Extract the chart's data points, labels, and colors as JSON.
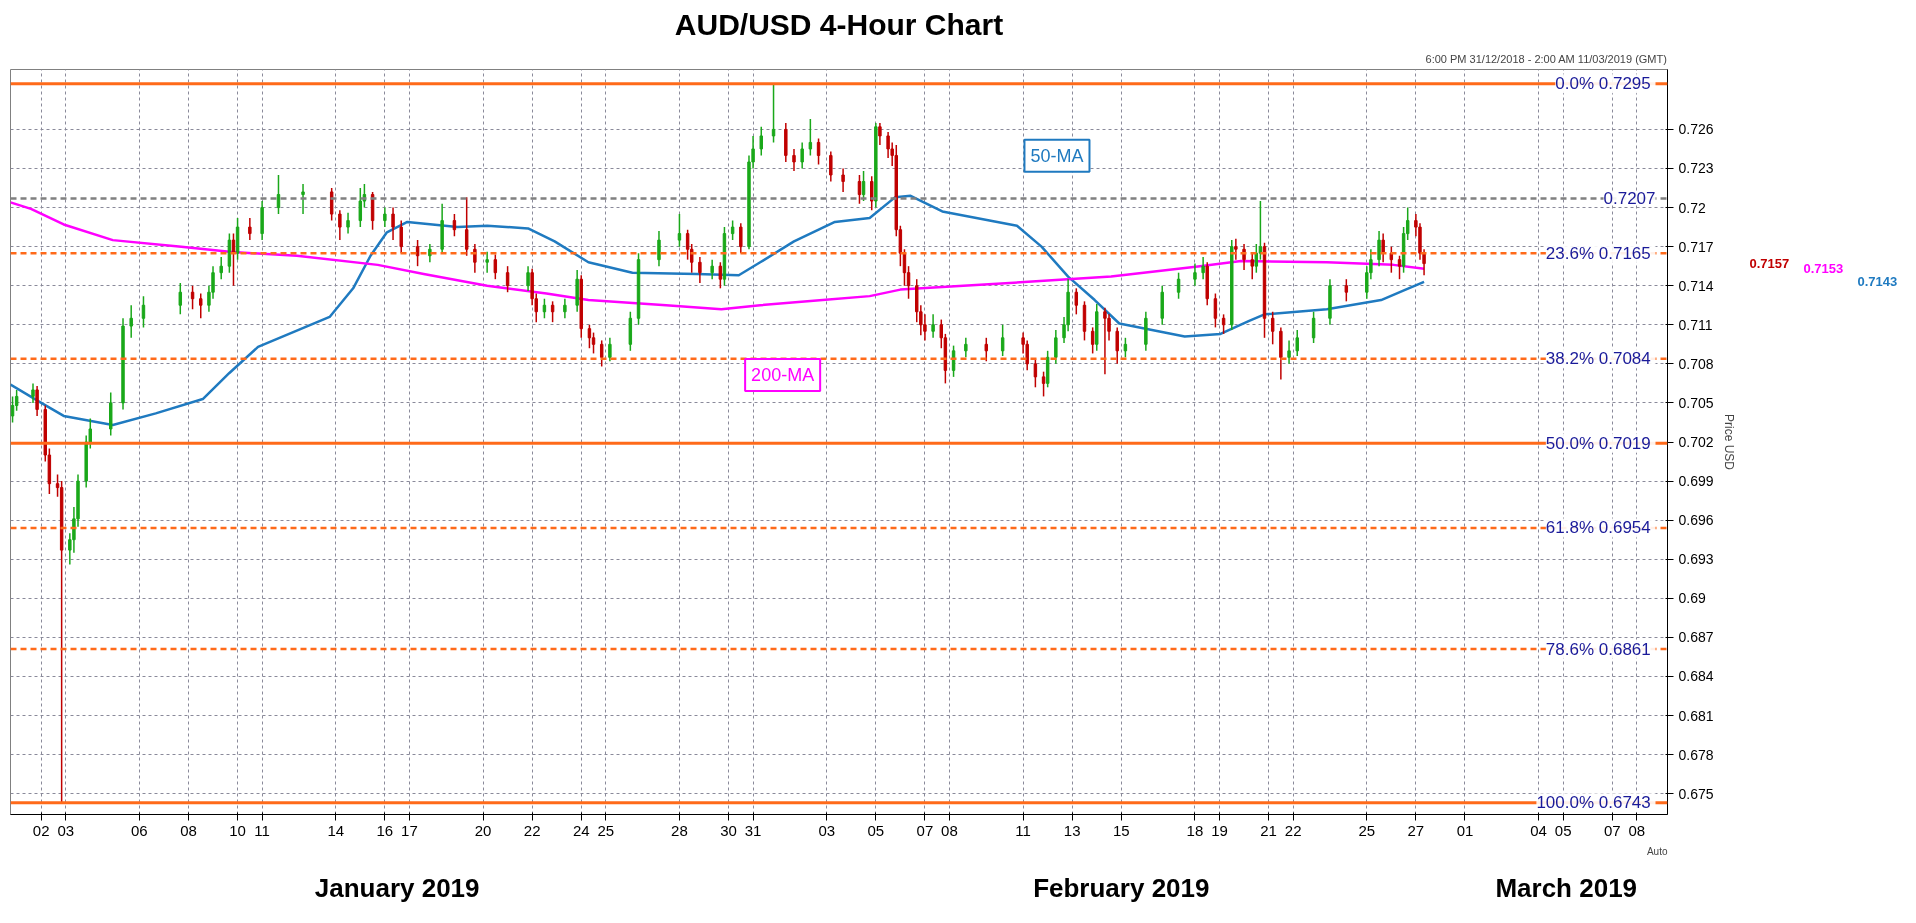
{
  "chart_data": {
    "type": "candlestick",
    "title": "AUD/USD 4-Hour Chart",
    "subtitle": "6:00 PM 31/12/2018 - 2:00 AM 11/03/2019 (GMT)",
    "ylabel": "Price USD",
    "xlim": [
      "2018-12-31T18:00",
      "2019-03-09T06:00"
    ],
    "ylim": [
      0.6734,
      0.7306
    ],
    "xticks": [
      {
        "value": "2019-01-02",
        "label": "02"
      },
      {
        "value": "2019-01-03",
        "label": "03"
      },
      {
        "value": "2019-01-06",
        "label": "06"
      },
      {
        "value": "2019-01-08",
        "label": "08"
      },
      {
        "value": "2019-01-10",
        "label": "10"
      },
      {
        "value": "2019-01-11",
        "label": "11"
      },
      {
        "value": "2019-01-14",
        "label": "14"
      },
      {
        "value": "2019-01-16",
        "label": "16"
      },
      {
        "value": "2019-01-17",
        "label": "17"
      },
      {
        "value": "2019-01-20",
        "label": "20"
      },
      {
        "value": "2019-01-22",
        "label": "22"
      },
      {
        "value": "2019-01-24",
        "label": "24"
      },
      {
        "value": "2019-01-25",
        "label": "25"
      },
      {
        "value": "2019-01-28",
        "label": "28"
      },
      {
        "value": "2019-01-30",
        "label": "30"
      },
      {
        "value": "2019-01-31",
        "label": "31"
      },
      {
        "value": "2019-02-03",
        "label": "03"
      },
      {
        "value": "2019-02-05",
        "label": "05"
      },
      {
        "value": "2019-02-07",
        "label": "07"
      },
      {
        "value": "2019-02-08",
        "label": "08"
      },
      {
        "value": "2019-02-11",
        "label": "11"
      },
      {
        "value": "2019-02-13",
        "label": "13"
      },
      {
        "value": "2019-02-15",
        "label": "15"
      },
      {
        "value": "2019-02-18",
        "label": "18"
      },
      {
        "value": "2019-02-19",
        "label": "19"
      },
      {
        "value": "2019-02-21",
        "label": "21"
      },
      {
        "value": "2019-02-22",
        "label": "22"
      },
      {
        "value": "2019-02-25",
        "label": "25"
      },
      {
        "value": "2019-02-27",
        "label": "27"
      },
      {
        "value": "2019-03-01",
        "label": "01"
      },
      {
        "value": "2019-03-04",
        "label": "04"
      },
      {
        "value": "2019-03-05",
        "label": "05"
      },
      {
        "value": "2019-03-07",
        "label": "07"
      },
      {
        "value": "2019-03-08",
        "label": "08"
      }
    ],
    "yticks": [
      0.675,
      0.678,
      0.681,
      0.684,
      0.687,
      0.69,
      0.693,
      0.696,
      0.699,
      0.702,
      0.705,
      0.708,
      0.711,
      0.714,
      0.717,
      0.72,
      0.723,
      0.726
    ],
    "grid": true,
    "legend": false,
    "x": [
      "2018-12-31T20:00",
      "2019-01-01T00:00",
      "2019-01-01T16:00",
      "2019-01-01T20:00",
      "2019-01-02T04:00",
      "2019-01-02T08:00",
      "2019-01-02T16:00",
      "2019-01-02T20:00",
      "2019-01-03T04:00",
      "2019-01-03T08:00",
      "2019-01-03T12:00",
      "2019-01-03T20:00",
      "2019-01-04T00:00",
      "2019-01-04T20:00",
      "2019-01-05T08:00",
      "2019-01-05T16:00",
      "2019-01-06T04:00",
      "2019-01-07T16:00",
      "2019-01-08T04:00",
      "2019-01-08T12:00",
      "2019-01-08T20:00",
      "2019-01-09T00:00",
      "2019-01-09T08:00",
      "2019-01-09T16:00",
      "2019-01-09T20:00",
      "2019-01-10T00:00",
      "2019-01-10T12:00",
      "2019-01-11T00:00",
      "2019-01-11T16:00",
      "2019-01-12T16:00",
      "2019-01-13T20:00",
      "2019-01-14T04:00",
      "2019-01-14T12:00",
      "2019-01-15T00:00",
      "2019-01-15T04:00",
      "2019-01-15T12:00",
      "2019-01-16T00:00",
      "2019-01-16T08:00",
      "2019-01-16T16:00",
      "2019-01-17T08:00",
      "2019-01-17T20:00",
      "2019-01-18T08:00",
      "2019-01-18T20:00",
      "2019-01-19T08:00",
      "2019-01-19T16:00",
      "2019-01-20T04:00",
      "2019-01-20T12:00",
      "2019-01-21T00:00",
      "2019-01-21T20:00",
      "2019-01-22T00:00",
      "2019-01-22T04:00",
      "2019-01-22T12:00",
      "2019-01-22T20:00",
      "2019-01-23T08:00",
      "2019-01-23T20:00",
      "2019-01-24T00:00",
      "2019-01-24T08:00",
      "2019-01-24T12:00",
      "2019-01-24T20:00",
      "2019-01-25T04:00",
      "2019-01-26T00:00",
      "2019-01-26T08:00",
      "2019-01-27T04:00",
      "2019-01-28T00:00",
      "2019-01-28T08:00",
      "2019-01-28T12:00",
      "2019-01-28T20:00",
      "2019-01-29T08:00",
      "2019-01-29T16:00",
      "2019-01-29T20:00",
      "2019-01-30T04:00",
      "2019-01-30T12:00",
      "2019-01-30T20:00",
      "2019-01-31T00:00",
      "2019-01-31T08:00",
      "2019-01-31T20:00",
      "2019-02-01T08:00",
      "2019-02-01T16:00",
      "2019-02-02T00:00",
      "2019-02-02T08:00",
      "2019-02-02T16:00",
      "2019-02-03T04:00",
      "2019-02-03T16:00",
      "2019-02-04T08:00",
      "2019-02-04T12:00",
      "2019-02-04T20:00",
      "2019-02-05T00:00",
      "2019-02-05T04:00",
      "2019-02-05T12:00",
      "2019-02-05T16:00",
      "2019-02-05T20:00",
      "2019-02-06T00:00",
      "2019-02-06T04:00",
      "2019-02-06T08:00",
      "2019-02-06T16:00",
      "2019-02-06T20:00",
      "2019-02-07T00:00",
      "2019-02-07T08:00",
      "2019-02-07T16:00",
      "2019-02-07T20:00",
      "2019-02-08T04:00",
      "2019-02-08T16:00",
      "2019-02-09T12:00",
      "2019-02-10T04:00",
      "2019-02-11T00:00",
      "2019-02-11T04:00",
      "2019-02-11T12:00",
      "2019-02-11T20:00",
      "2019-02-12T00:00",
      "2019-02-12T08:00",
      "2019-02-12T16:00",
      "2019-02-12T20:00",
      "2019-02-13T04:00",
      "2019-02-13T12:00",
      "2019-02-13T20:00",
      "2019-02-14T00:00",
      "2019-02-14T08:00",
      "2019-02-14T12:00",
      "2019-02-14T20:00",
      "2019-02-15T04:00",
      "2019-02-16T00:00",
      "2019-02-16T16:00",
      "2019-02-17T08:00",
      "2019-02-18T00:00",
      "2019-02-18T08:00",
      "2019-02-18T12:00",
      "2019-02-18T20:00",
      "2019-02-19T04:00",
      "2019-02-19T12:00",
      "2019-02-19T16:00",
      "2019-02-20T00:00",
      "2019-02-20T08:00",
      "2019-02-20T12:00",
      "2019-02-20T16:00",
      "2019-02-20T20:00",
      "2019-02-21T04:00",
      "2019-02-21T12:00",
      "2019-02-21T20:00",
      "2019-02-22T04:00",
      "2019-02-22T20:00",
      "2019-02-23T12:00",
      "2019-02-24T04:00",
      "2019-02-25T00:00",
      "2019-02-25T04:00",
      "2019-02-25T12:00",
      "2019-02-25T16:00",
      "2019-02-26T00:00",
      "2019-02-26T08:00",
      "2019-02-26T12:00",
      "2019-02-26T16:00",
      "2019-02-27T00:00",
      "2019-02-27T04:00",
      "2019-02-27T08:00"
    ],
    "ohlc": [
      [
        0.704,
        0.7055,
        0.7035,
        0.7048
      ],
      [
        0.7048,
        0.706,
        0.7044,
        0.7055
      ],
      [
        0.7055,
        0.7065,
        0.705,
        0.706
      ],
      [
        0.706,
        0.7063,
        0.704,
        0.7045
      ],
      [
        0.7045,
        0.7048,
        0.7005,
        0.701
      ],
      [
        0.701,
        0.7015,
        0.698,
        0.6988
      ],
      [
        0.6988,
        0.6995,
        0.6978,
        0.6985
      ],
      [
        0.6985,
        0.699,
        0.6743,
        0.6937
      ],
      [
        0.6937,
        0.695,
        0.6926,
        0.6945
      ],
      [
        0.6945,
        0.697,
        0.6935,
        0.6961
      ],
      [
        0.6961,
        0.6995,
        0.6955,
        0.699
      ],
      [
        0.699,
        0.7025,
        0.6985,
        0.702
      ],
      [
        0.702,
        0.7038,
        0.7015,
        0.703
      ],
      [
        0.703,
        0.7058,
        0.7025,
        0.705
      ],
      [
        0.705,
        0.7115,
        0.7045,
        0.7109
      ],
      [
        0.7109,
        0.7125,
        0.71,
        0.7115
      ],
      [
        0.7115,
        0.7132,
        0.7108,
        0.7125
      ],
      [
        0.7125,
        0.7142,
        0.7118,
        0.7135
      ],
      [
        0.7135,
        0.714,
        0.7122,
        0.713
      ],
      [
        0.713,
        0.7134,
        0.7115,
        0.7125
      ],
      [
        0.7125,
        0.714,
        0.712,
        0.7135
      ],
      [
        0.7135,
        0.7155,
        0.713,
        0.715
      ],
      [
        0.715,
        0.7162,
        0.7145,
        0.7155
      ],
      [
        0.7155,
        0.718,
        0.715,
        0.7175
      ],
      [
        0.7175,
        0.718,
        0.714,
        0.7165
      ],
      [
        0.7165,
        0.7192,
        0.716,
        0.7185
      ],
      [
        0.7185,
        0.7192,
        0.7175,
        0.718
      ],
      [
        0.718,
        0.7205,
        0.7175,
        0.72
      ],
      [
        0.72,
        0.7225,
        0.7195,
        0.721
      ],
      [
        0.721,
        0.7218,
        0.7195,
        0.7212
      ],
      [
        0.7212,
        0.7215,
        0.719,
        0.7195
      ],
      [
        0.7195,
        0.7198,
        0.7175,
        0.7185
      ],
      [
        0.7185,
        0.7196,
        0.718,
        0.719
      ],
      [
        0.719,
        0.7215,
        0.7185,
        0.7205
      ],
      [
        0.7205,
        0.7218,
        0.72,
        0.721
      ],
      [
        0.721,
        0.7212,
        0.7183,
        0.719
      ],
      [
        0.719,
        0.72,
        0.7185,
        0.7195
      ],
      [
        0.7195,
        0.72,
        0.7175,
        0.7185
      ],
      [
        0.7185,
        0.719,
        0.7165,
        0.717
      ],
      [
        0.717,
        0.7175,
        0.7155,
        0.7163
      ],
      [
        0.7163,
        0.7172,
        0.7158,
        0.7168
      ],
      [
        0.7168,
        0.7203,
        0.7165,
        0.719
      ],
      [
        0.719,
        0.7195,
        0.7178,
        0.7183
      ],
      [
        0.7183,
        0.7208,
        0.7163,
        0.7168
      ],
      [
        0.7168,
        0.7172,
        0.715,
        0.7158
      ],
      [
        0.7158,
        0.7166,
        0.715,
        0.716
      ],
      [
        0.716,
        0.7164,
        0.7145,
        0.715
      ],
      [
        0.715,
        0.7155,
        0.7135,
        0.714
      ],
      [
        0.714,
        0.7155,
        0.7136,
        0.715
      ],
      [
        0.715,
        0.7153,
        0.7125,
        0.713
      ],
      [
        0.713,
        0.7134,
        0.7112,
        0.712
      ],
      [
        0.712,
        0.713,
        0.7115,
        0.7125
      ],
      [
        0.7125,
        0.7128,
        0.7112,
        0.712
      ],
      [
        0.712,
        0.713,
        0.7115,
        0.7125
      ],
      [
        0.7125,
        0.7152,
        0.712,
        0.7145
      ],
      [
        0.7145,
        0.7148,
        0.71,
        0.7107
      ],
      [
        0.7107,
        0.711,
        0.7092,
        0.71
      ],
      [
        0.71,
        0.7104,
        0.7088,
        0.7095
      ],
      [
        0.7095,
        0.7098,
        0.7078,
        0.7085
      ],
      [
        0.7085,
        0.71,
        0.7082,
        0.7095
      ],
      [
        0.7095,
        0.712,
        0.709,
        0.7115
      ],
      [
        0.7115,
        0.7165,
        0.711,
        0.716
      ],
      [
        0.716,
        0.7182,
        0.7155,
        0.7175
      ],
      [
        0.7175,
        0.7195,
        0.717,
        0.718
      ],
      [
        0.718,
        0.7183,
        0.716,
        0.7168
      ],
      [
        0.7168,
        0.7172,
        0.715,
        0.7158
      ],
      [
        0.7158,
        0.7162,
        0.7142,
        0.715
      ],
      [
        0.715,
        0.716,
        0.7145,
        0.7155
      ],
      [
        0.7155,
        0.7158,
        0.7138,
        0.7145
      ],
      [
        0.7145,
        0.7185,
        0.714,
        0.718
      ],
      [
        0.718,
        0.719,
        0.7175,
        0.7185
      ],
      [
        0.7185,
        0.7188,
        0.7165,
        0.717
      ],
      [
        0.717,
        0.724,
        0.7168,
        0.7235
      ],
      [
        0.7235,
        0.7255,
        0.723,
        0.7245
      ],
      [
        0.7245,
        0.7262,
        0.724,
        0.7255
      ],
      [
        0.7255,
        0.7295,
        0.725,
        0.726
      ],
      [
        0.726,
        0.7265,
        0.7235,
        0.724
      ],
      [
        0.724,
        0.7245,
        0.7228,
        0.7235
      ],
      [
        0.7235,
        0.725,
        0.723,
        0.7245
      ],
      [
        0.7245,
        0.7268,
        0.724,
        0.725
      ],
      [
        0.725,
        0.7253,
        0.7233,
        0.724
      ],
      [
        0.724,
        0.7243,
        0.722,
        0.7225
      ],
      [
        0.7225,
        0.723,
        0.7212,
        0.722
      ],
      [
        0.722,
        0.7225,
        0.7203,
        0.721
      ],
      [
        0.721,
        0.7228,
        0.7205,
        0.722
      ],
      [
        0.722,
        0.7224,
        0.7198,
        0.7205
      ],
      [
        0.7205,
        0.7265,
        0.72,
        0.7262
      ],
      [
        0.7262,
        0.7265,
        0.7248,
        0.7255
      ],
      [
        0.7255,
        0.7258,
        0.7238,
        0.7245
      ],
      [
        0.7245,
        0.725,
        0.7232,
        0.724
      ],
      [
        0.724,
        0.7248,
        0.7178,
        0.7183
      ],
      [
        0.7183,
        0.7186,
        0.7155,
        0.7165
      ],
      [
        0.7165,
        0.7168,
        0.714,
        0.715
      ],
      [
        0.715,
        0.7155,
        0.713,
        0.714
      ],
      [
        0.714,
        0.7145,
        0.7112,
        0.712
      ],
      [
        0.712,
        0.7125,
        0.7102,
        0.711
      ],
      [
        0.711,
        0.7118,
        0.7098,
        0.7105
      ],
      [
        0.7105,
        0.7118,
        0.71,
        0.711
      ],
      [
        0.711,
        0.7114,
        0.7092,
        0.71
      ],
      [
        0.71,
        0.7103,
        0.7065,
        0.7075
      ],
      [
        0.7075,
        0.7094,
        0.707,
        0.709
      ],
      [
        0.709,
        0.71,
        0.7085,
        0.7095
      ],
      [
        0.7095,
        0.71,
        0.7082,
        0.709
      ],
      [
        0.709,
        0.711,
        0.7086,
        0.71
      ],
      [
        0.71,
        0.7104,
        0.7088,
        0.7095
      ],
      [
        0.7095,
        0.7098,
        0.7075,
        0.708
      ],
      [
        0.708,
        0.7084,
        0.7062,
        0.707
      ],
      [
        0.707,
        0.7074,
        0.7055,
        0.7065
      ],
      [
        0.7065,
        0.709,
        0.7062,
        0.7085
      ],
      [
        0.7085,
        0.7106,
        0.708,
        0.71
      ],
      [
        0.71,
        0.7116,
        0.7096,
        0.711
      ],
      [
        0.711,
        0.7145,
        0.7105,
        0.7135
      ],
      [
        0.7135,
        0.7138,
        0.7118,
        0.7125
      ],
      [
        0.7125,
        0.7128,
        0.7098,
        0.7105
      ],
      [
        0.7105,
        0.7108,
        0.7088,
        0.7095
      ],
      [
        0.7095,
        0.7126,
        0.709,
        0.712
      ],
      [
        0.712,
        0.7123,
        0.7072,
        0.7115
      ],
      [
        0.7115,
        0.7118,
        0.7098,
        0.7105
      ],
      [
        0.7105,
        0.7108,
        0.708,
        0.709
      ],
      [
        0.709,
        0.71,
        0.7085,
        0.7095
      ],
      [
        0.7095,
        0.712,
        0.709,
        0.7115
      ],
      [
        0.7115,
        0.714,
        0.711,
        0.7135
      ],
      [
        0.7135,
        0.715,
        0.713,
        0.7145
      ],
      [
        0.7145,
        0.7157,
        0.714,
        0.715
      ],
      [
        0.715,
        0.7162,
        0.7145,
        0.7155
      ],
      [
        0.7155,
        0.7158,
        0.7125,
        0.713
      ],
      [
        0.713,
        0.7134,
        0.7108,
        0.7115
      ],
      [
        0.7115,
        0.7118,
        0.7103,
        0.711
      ],
      [
        0.711,
        0.7175,
        0.7106,
        0.717
      ],
      [
        0.717,
        0.7176,
        0.716,
        0.7168
      ],
      [
        0.7168,
        0.7172,
        0.7152,
        0.716
      ],
      [
        0.716,
        0.7165,
        0.7145,
        0.7155
      ],
      [
        0.7155,
        0.7172,
        0.715,
        0.7165
      ],
      [
        0.7165,
        0.7205,
        0.716,
        0.717
      ],
      [
        0.717,
        0.7173,
        0.71,
        0.7115
      ],
      [
        0.7115,
        0.712,
        0.7095,
        0.7105
      ],
      [
        0.7105,
        0.7108,
        0.7068,
        0.7085
      ],
      [
        0.7085,
        0.7098,
        0.708,
        0.709
      ],
      [
        0.709,
        0.7106,
        0.7086,
        0.71
      ],
      [
        0.71,
        0.712,
        0.7096,
        0.7115
      ],
      [
        0.7115,
        0.7145,
        0.711,
        0.714
      ],
      [
        0.714,
        0.7145,
        0.7128,
        0.7135
      ],
      [
        0.7135,
        0.7155,
        0.713,
        0.715
      ],
      [
        0.715,
        0.7168,
        0.7145,
        0.716
      ],
      [
        0.716,
        0.7182,
        0.7155,
        0.7175
      ],
      [
        0.7175,
        0.718,
        0.7158,
        0.7165
      ],
      [
        0.7165,
        0.717,
        0.715,
        0.716
      ],
      [
        0.716,
        0.7163,
        0.7145,
        0.7155
      ],
      [
        0.7155,
        0.7185,
        0.715,
        0.718
      ],
      [
        0.718,
        0.72,
        0.7175,
        0.719
      ],
      [
        0.719,
        0.7195,
        0.7178,
        0.7185
      ],
      [
        0.7185,
        0.7188,
        0.716,
        0.7165
      ],
      [
        0.7165,
        0.7168,
        0.7148,
        0.7157
      ]
    ],
    "series": [
      {
        "name": "50-MA",
        "type": "line",
        "color": "#1f7ac0",
        "x": [
          "2018-12-31T18:00",
          "2019-01-01T22:00",
          "2019-01-02T22:00",
          "2019-01-04T22:00",
          "2019-01-06T16:00",
          "2019-01-08T14:00",
          "2019-01-09T16:00",
          "2019-01-10T20:00",
          "2019-01-13T18:00",
          "2019-01-14T17:00",
          "2019-01-15T10:00",
          "2019-01-16T02:00",
          "2019-01-16T22:00",
          "2019-01-18T23:00",
          "2019-01-20T04:00",
          "2019-01-21T20:00",
          "2019-01-22T22:00",
          "2019-01-24T07:00",
          "2019-01-26T02:00",
          "2019-01-28T17:00",
          "2019-01-30T10:00",
          "2019-01-31T07:00",
          "2019-02-01T16:00",
          "2019-02-03T08:00",
          "2019-02-04T18:00",
          "2019-02-05T19:00",
          "2019-02-06T10:00",
          "2019-02-07T17:00",
          "2019-02-10T18:00",
          "2019-02-11T18:00",
          "2019-02-12T20:00",
          "2019-02-13T22:00",
          "2019-02-14T22:00",
          "2019-02-17T14:00",
          "2019-02-19T01:00",
          "2019-02-20T05:00",
          "2019-02-20T20:00",
          "2019-02-23T09:00",
          "2019-02-25T14:00",
          "2019-02-26T14:00",
          "2019-02-27T08:00"
        ],
        "values": [
          0.7064,
          0.7051,
          0.704,
          0.7033,
          0.7042,
          0.7053,
          0.7073,
          0.7093,
          0.7116,
          0.7138,
          0.7163,
          0.7181,
          0.7189,
          0.7185,
          0.7186,
          0.7184,
          0.7174,
          0.7158,
          0.715,
          0.7149,
          0.7148,
          0.7158,
          0.7174,
          0.7189,
          0.7192,
          0.7208,
          0.7209,
          0.7197,
          0.7186,
          0.717,
          0.7147,
          0.7129,
          0.7111,
          0.7101,
          0.7103,
          0.7113,
          0.7118,
          0.7122,
          0.7129,
          0.7137,
          0.7143
        ]
      },
      {
        "name": "200-MA",
        "type": "line",
        "color": "#ff00ff",
        "x": [
          "2018-12-31T18:00",
          "2019-01-01T14:00",
          "2019-01-02T22:00",
          "2019-01-04T22:00",
          "2019-01-07T17:00",
          "2019-01-09T16:00",
          "2019-01-12T10:00",
          "2019-01-15T17:00",
          "2019-01-17T14:00",
          "2019-01-20T04:00",
          "2019-01-22T14:00",
          "2019-01-24T07:00",
          "2019-01-27T11:00",
          "2019-01-29T17:00",
          "2019-01-31T07:00",
          "2019-02-02T20:00",
          "2019-02-04T18:00",
          "2019-02-06T00:00",
          "2019-02-11T05:00",
          "2019-02-14T14:00",
          "2019-02-18T05:00",
          "2019-02-19T21:00",
          "2019-02-23T09:00",
          "2019-02-26T02:00",
          "2019-02-27T08:00"
        ],
        "values": [
          0.7204,
          0.7199,
          0.7187,
          0.7175,
          0.717,
          0.7166,
          0.7163,
          0.7156,
          0.7149,
          0.714,
          0.7134,
          0.7129,
          0.7125,
          0.7122,
          0.7125,
          0.7129,
          0.7132,
          0.7137,
          0.7143,
          0.7147,
          0.7155,
          0.7159,
          0.7158,
          0.7156,
          0.7153
        ]
      }
    ],
    "ref_lines": [
      {
        "axis": "y",
        "value": 0.7295,
        "label": "0.0%  0.7295",
        "color": "#ff6a1a",
        "line_style": "solid"
      },
      {
        "axis": "y",
        "value": 0.7207,
        "label": "0.7207",
        "color": "#808080",
        "line_style": "dashed"
      },
      {
        "axis": "y",
        "value": 0.7165,
        "label": "23.6%  0.7165",
        "color": "#ff6a1a",
        "line_style": "dashed"
      },
      {
        "axis": "y",
        "value": 0.7084,
        "label": "38.2%  0.7084",
        "color": "#ff6a1a",
        "line_style": "dashed"
      },
      {
        "axis": "y",
        "value": 0.7019,
        "label": "50.0%  0.7019",
        "color": "#ff6a1a",
        "line_style": "solid"
      },
      {
        "axis": "y",
        "value": 0.6954,
        "label": "61.8%  0.6954",
        "color": "#ff6a1a",
        "line_style": "dashed"
      },
      {
        "axis": "y",
        "value": 0.6861,
        "label": "78.6%  0.6861",
        "color": "#ff6a1a",
        "line_style": "dashed"
      },
      {
        "axis": "y",
        "value": 0.6743,
        "label": "100.0%  0.6743",
        "color": "#ff6a1a",
        "line_style": "solid"
      }
    ],
    "annotations": [
      "0.7157",
      "0.7153",
      "0.7143",
      "January 2019",
      "February 2019",
      "March 2019",
      "Auto"
    ]
  }
}
